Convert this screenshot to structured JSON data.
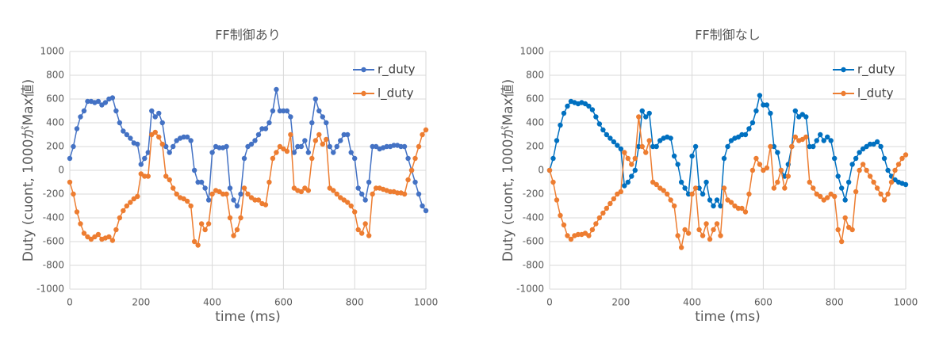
{
  "chart_data": [
    {
      "type": "line",
      "title": "FF制御あり",
      "xlabel": "time (ms)",
      "ylabel": "Duty (cuont, 1000がMax値)",
      "x": [
        0,
        10,
        20,
        30,
        40,
        50,
        60,
        70,
        80,
        90,
        100,
        110,
        120,
        130,
        140,
        150,
        160,
        170,
        180,
        190,
        200,
        210,
        220,
        230,
        240,
        250,
        260,
        270,
        280,
        290,
        300,
        310,
        320,
        330,
        340,
        350,
        360,
        370,
        380,
        390,
        400,
        410,
        420,
        430,
        440,
        450,
        460,
        470,
        480,
        490,
        500,
        510,
        520,
        530,
        540,
        550,
        560,
        570,
        580,
        590,
        600,
        610,
        620,
        630,
        640,
        650,
        660,
        670,
        680,
        690,
        700,
        710,
        720,
        730,
        740,
        750,
        760,
        770,
        780,
        790,
        800,
        810,
        820,
        830,
        840,
        850,
        860,
        870,
        880,
        890,
        900,
        910,
        920,
        930,
        940,
        950,
        960,
        970,
        980,
        990,
        1000
      ],
      "series": [
        {
          "name": "r_duty",
          "color": "#4472c4",
          "values": [
            100,
            200,
            350,
            450,
            500,
            580,
            580,
            570,
            580,
            550,
            570,
            600,
            610,
            500,
            400,
            330,
            300,
            270,
            230,
            220,
            50,
            100,
            150,
            500,
            450,
            480,
            400,
            200,
            150,
            200,
            250,
            270,
            280,
            280,
            250,
            0,
            -100,
            -100,
            -150,
            -250,
            150,
            200,
            190,
            190,
            200,
            -150,
            -250,
            -300,
            -200,
            100,
            200,
            220,
            250,
            300,
            350,
            350,
            400,
            500,
            680,
            500,
            500,
            500,
            450,
            150,
            200,
            200,
            250,
            150,
            400,
            600,
            500,
            450,
            400,
            200,
            150,
            200,
            250,
            300,
            300,
            150,
            100,
            -150,
            -200,
            -250,
            -100,
            200,
            200,
            180,
            190,
            200,
            200,
            210,
            210,
            200,
            200,
            100,
            0,
            -100,
            -200,
            -300,
            -340
          ]
        },
        {
          "name": "l_duty",
          "color": "#ed7d31",
          "values": [
            -100,
            -200,
            -350,
            -450,
            -530,
            -560,
            -580,
            -560,
            -540,
            -580,
            -570,
            -560,
            -590,
            -500,
            -400,
            -340,
            -300,
            -270,
            -240,
            -220,
            -30,
            -50,
            -50,
            300,
            320,
            280,
            220,
            -50,
            -80,
            -150,
            -200,
            -230,
            -240,
            -260,
            -300,
            -600,
            -630,
            -450,
            -500,
            -450,
            -200,
            -170,
            -180,
            -200,
            -200,
            -400,
            -550,
            -500,
            -400,
            -150,
            -200,
            -230,
            -250,
            -250,
            -280,
            -290,
            -100,
            100,
            150,
            200,
            180,
            160,
            300,
            -150,
            -170,
            -180,
            -150,
            -170,
            100,
            250,
            300,
            220,
            260,
            -150,
            -170,
            -200,
            -230,
            -250,
            -270,
            -300,
            -350,
            -500,
            -530,
            -450,
            -550,
            -200,
            -150,
            -150,
            -160,
            -170,
            -180,
            -180,
            -190,
            -190,
            -200,
            -80,
            0,
            100,
            200,
            300,
            340
          ]
        }
      ],
      "xlim": [
        0,
        1000
      ],
      "xticks": [
        0,
        200,
        400,
        600,
        800,
        1000
      ],
      "ylim": [
        -1000,
        1000
      ],
      "yticks": [
        -1000,
        -800,
        -600,
        -400,
        -200,
        0,
        200,
        400,
        600,
        800,
        1000
      ],
      "grid": true,
      "legend": "upper right"
    },
    {
      "type": "line",
      "title": "FF制御なし",
      "xlabel": "time (ms)",
      "ylabel": "Duty (cuont, 1000がMax値)",
      "x": [
        0,
        10,
        20,
        30,
        40,
        50,
        60,
        70,
        80,
        90,
        100,
        110,
        120,
        130,
        140,
        150,
        160,
        170,
        180,
        190,
        200,
        210,
        220,
        230,
        240,
        250,
        260,
        270,
        280,
        290,
        300,
        310,
        320,
        330,
        340,
        350,
        360,
        370,
        380,
        390,
        400,
        410,
        420,
        430,
        440,
        450,
        460,
        470,
        480,
        490,
        500,
        510,
        520,
        530,
        540,
        550,
        560,
        570,
        580,
        590,
        600,
        610,
        620,
        630,
        640,
        650,
        660,
        670,
        680,
        690,
        700,
        710,
        720,
        730,
        740,
        750,
        760,
        770,
        780,
        790,
        800,
        810,
        820,
        830,
        840,
        850,
        860,
        870,
        880,
        890,
        900,
        910,
        920,
        930,
        940,
        950,
        960,
        970,
        980,
        990,
        1000
      ],
      "series": [
        {
          "name": "r_duty",
          "color": "#0070c0",
          "values": [
            0,
            100,
            250,
            380,
            480,
            540,
            580,
            570,
            560,
            570,
            560,
            540,
            510,
            450,
            390,
            340,
            300,
            270,
            240,
            210,
            180,
            -130,
            -100,
            -50,
            0,
            200,
            500,
            450,
            480,
            200,
            200,
            250,
            270,
            280,
            270,
            120,
            50,
            -100,
            -150,
            -200,
            120,
            200,
            -150,
            -200,
            -100,
            -250,
            -300,
            -250,
            -300,
            100,
            200,
            250,
            270,
            280,
            300,
            300,
            350,
            400,
            500,
            630,
            550,
            550,
            480,
            200,
            150,
            0,
            -50,
            50,
            200,
            500,
            450,
            470,
            450,
            200,
            200,
            250,
            300,
            250,
            280,
            250,
            100,
            -50,
            -150,
            -250,
            -100,
            50,
            100,
            150,
            180,
            200,
            220,
            220,
            240,
            200,
            100,
            0,
            -50,
            -80,
            -100,
            -110,
            -120
          ]
        },
        {
          "name": "l_duty",
          "color": "#ed7d31",
          "values": [
            0,
            -100,
            -250,
            -380,
            -460,
            -550,
            -580,
            -550,
            -540,
            -540,
            -530,
            -550,
            -500,
            -450,
            -400,
            -360,
            -320,
            -280,
            -240,
            -200,
            -180,
            150,
            100,
            50,
            100,
            450,
            200,
            150,
            250,
            -100,
            -120,
            -150,
            -170,
            -200,
            -250,
            -300,
            -550,
            -650,
            -500,
            -530,
            -200,
            -150,
            -500,
            -550,
            -450,
            -580,
            -500,
            -450,
            -550,
            -150,
            -250,
            -270,
            -300,
            -320,
            -320,
            -350,
            -200,
            0,
            100,
            50,
            0,
            20,
            200,
            -150,
            -100,
            0,
            -150,
            -50,
            200,
            280,
            250,
            260,
            280,
            -100,
            -150,
            -200,
            -220,
            -250,
            -230,
            -200,
            -220,
            -500,
            -600,
            -400,
            -480,
            -500,
            -180,
            0,
            50,
            0,
            -50,
            -100,
            -150,
            -200,
            -250,
            -200,
            -100,
            0,
            50,
            100,
            130
          ]
        }
      ],
      "xlim": [
        0,
        1000
      ],
      "xticks": [
        0,
        200,
        400,
        600,
        800,
        1000
      ],
      "ylim": [
        -1000,
        1000
      ],
      "yticks": [
        -1000,
        -800,
        -600,
        -400,
        -200,
        0,
        200,
        400,
        600,
        800,
        1000
      ],
      "grid": true,
      "legend": "upper right"
    }
  ]
}
